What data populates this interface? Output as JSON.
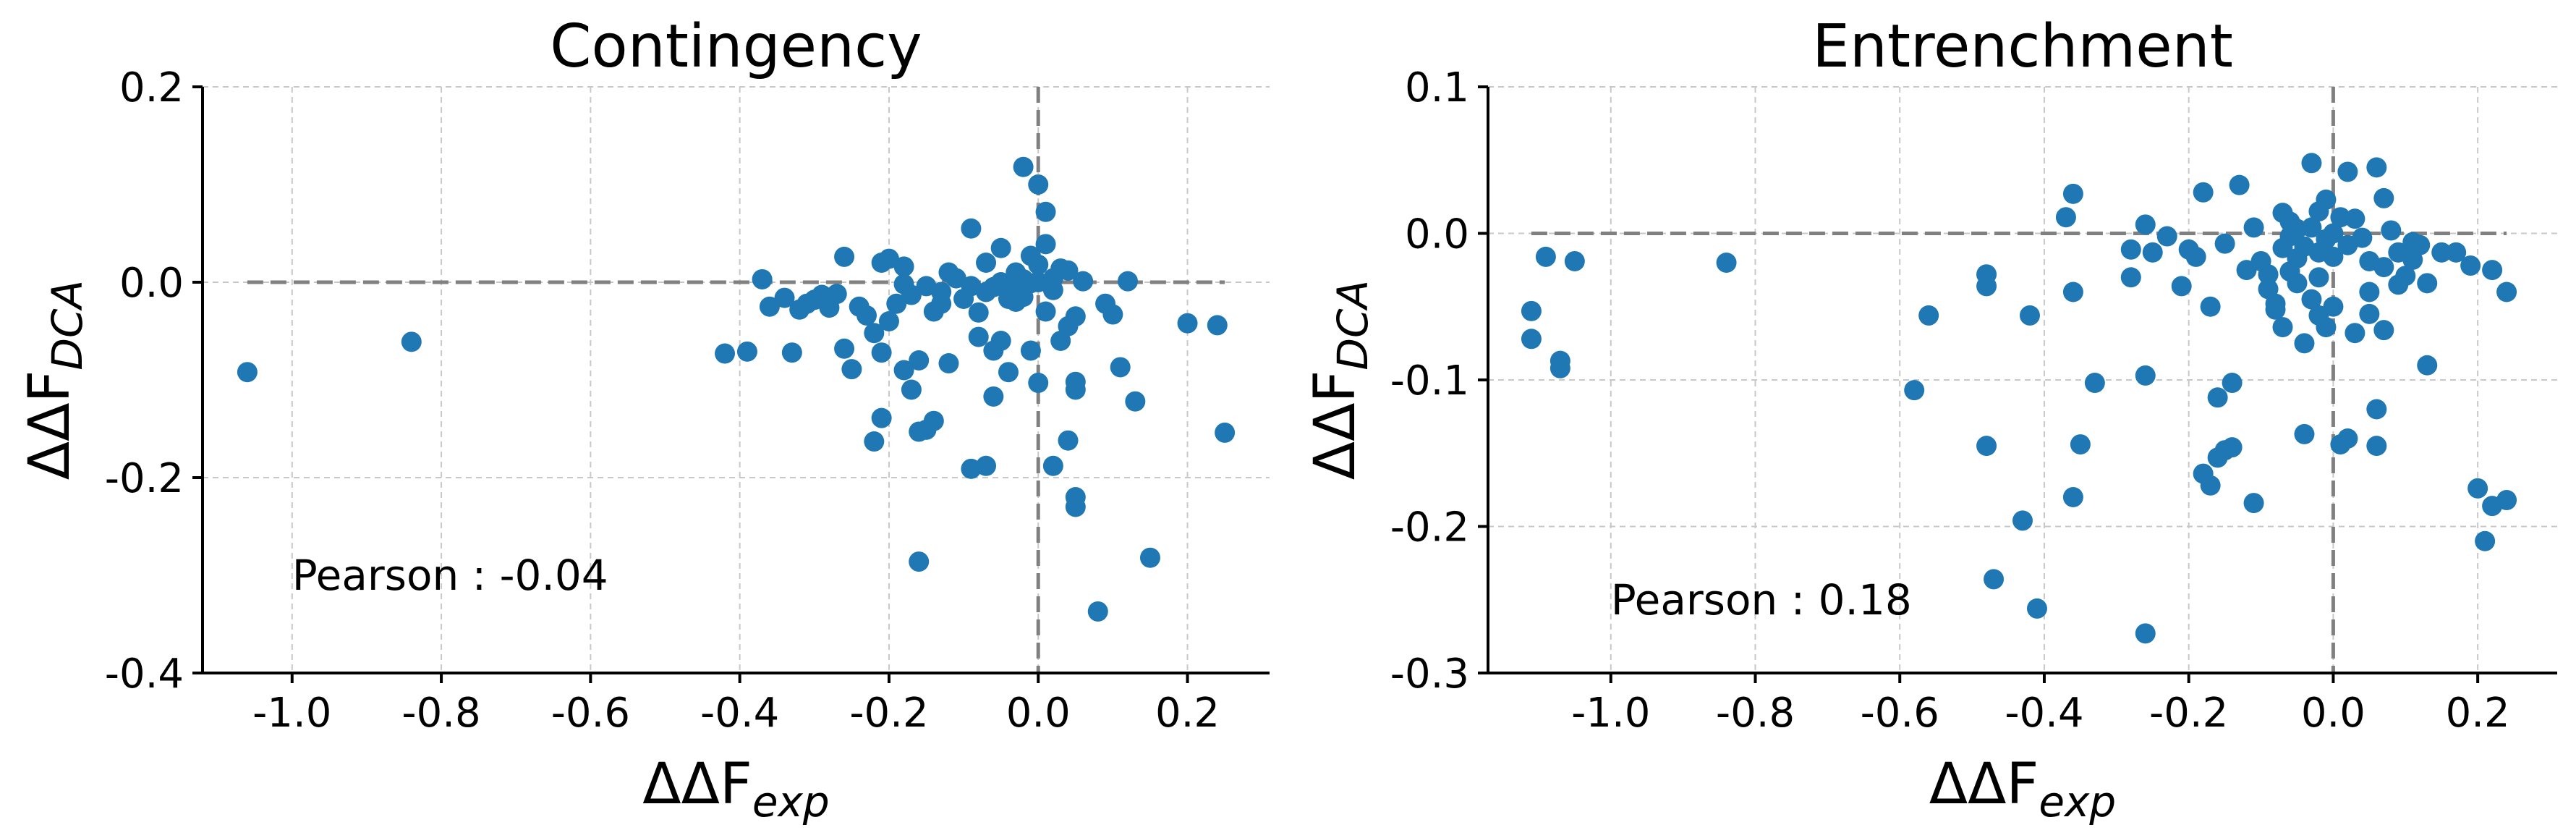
{
  "chart_data": [
    {
      "type": "scatter",
      "title": "Contingency",
      "xlabel": "ΔΔF_exp",
      "ylabel": "ΔΔF_DCA",
      "xlim": [
        -1.12,
        0.31
      ],
      "ylim": [
        -0.4,
        0.2
      ],
      "xticks": [
        -1.0,
        -0.8,
        -0.6,
        -0.4,
        -0.2,
        0.0,
        0.2
      ],
      "xtick_labels": [
        "-1.0",
        "-0.8",
        "-0.6",
        "-0.4",
        "-0.2",
        "0.0",
        "0.2"
      ],
      "yticks": [
        -0.4,
        -0.2,
        0.0,
        0.2
      ],
      "ytick_labels": [
        "-0.4",
        "-0.2",
        "0.0",
        "0.2"
      ],
      "grid": true,
      "reference_lines": {
        "horizontal_y": 0.0,
        "vertical_x": 0.0
      },
      "annotation": "Pearson : -0.04",
      "marker_color": "#1f77b4",
      "points": [
        [
          -1.06,
          -0.092
        ],
        [
          -0.84,
          -0.061
        ],
        [
          -0.42,
          -0.073
        ],
        [
          -0.39,
          -0.071
        ],
        [
          -0.37,
          0.003
        ],
        [
          -0.36,
          -0.025
        ],
        [
          -0.34,
          -0.016
        ],
        [
          -0.33,
          -0.072
        ],
        [
          -0.32,
          -0.028
        ],
        [
          -0.31,
          -0.022
        ],
        [
          -0.3,
          -0.018
        ],
        [
          -0.29,
          -0.013
        ],
        [
          -0.28,
          -0.026
        ],
        [
          -0.27,
          -0.012
        ],
        [
          -0.26,
          0.026
        ],
        [
          -0.26,
          -0.068
        ],
        [
          -0.25,
          -0.089
        ],
        [
          -0.24,
          -0.025
        ],
        [
          -0.23,
          -0.034
        ],
        [
          -0.22,
          -0.052
        ],
        [
          -0.22,
          -0.163
        ],
        [
          -0.21,
          -0.139
        ],
        [
          -0.21,
          -0.072
        ],
        [
          -0.21,
          0.02
        ],
        [
          -0.2,
          0.024
        ],
        [
          -0.2,
          -0.04
        ],
        [
          -0.19,
          -0.022
        ],
        [
          -0.18,
          0.016
        ],
        [
          -0.18,
          -0.09
        ],
        [
          -0.18,
          -0.002
        ],
        [
          -0.17,
          -0.11
        ],
        [
          -0.17,
          -0.013
        ],
        [
          -0.16,
          -0.153
        ],
        [
          -0.16,
          -0.286
        ],
        [
          -0.16,
          -0.08
        ],
        [
          -0.15,
          -0.151
        ],
        [
          -0.15,
          -0.004
        ],
        [
          -0.14,
          -0.142
        ],
        [
          -0.14,
          -0.03
        ],
        [
          -0.13,
          -0.022
        ],
        [
          -0.13,
          -0.01
        ],
        [
          -0.12,
          0.01
        ],
        [
          -0.12,
          -0.083
        ],
        [
          -0.11,
          0.004
        ],
        [
          -0.1,
          -0.017
        ],
        [
          -0.09,
          0.055
        ],
        [
          -0.09,
          -0.191
        ],
        [
          -0.09,
          -0.004
        ],
        [
          -0.08,
          -0.031
        ],
        [
          -0.08,
          -0.056
        ],
        [
          -0.07,
          -0.188
        ],
        [
          -0.07,
          -0.01
        ],
        [
          -0.07,
          0.02
        ],
        [
          -0.06,
          -0.07
        ],
        [
          -0.06,
          -0.117
        ],
        [
          -0.06,
          -0.005
        ],
        [
          -0.05,
          -0.06
        ],
        [
          -0.05,
          0.035
        ],
        [
          -0.05,
          0.0
        ],
        [
          -0.04,
          -0.092
        ],
        [
          -0.04,
          -0.017
        ],
        [
          -0.03,
          -0.006
        ],
        [
          -0.03,
          0.01
        ],
        [
          -0.03,
          -0.02
        ],
        [
          -0.02,
          0.118
        ],
        [
          -0.02,
          0.003
        ],
        [
          -0.02,
          -0.015
        ],
        [
          -0.01,
          0.027
        ],
        [
          -0.01,
          -0.07
        ],
        [
          -0.01,
          -0.001
        ],
        [
          0.0,
          0.1
        ],
        [
          0.0,
          -0.103
        ],
        [
          0.0,
          0.0
        ],
        [
          0.0,
          0.018
        ],
        [
          0.01,
          0.072
        ],
        [
          0.01,
          0.039
        ],
        [
          0.01,
          -0.03
        ],
        [
          0.02,
          -0.188
        ],
        [
          0.02,
          -0.008
        ],
        [
          0.02,
          0.004
        ],
        [
          0.03,
          -0.06
        ],
        [
          0.03,
          0.014
        ],
        [
          0.04,
          -0.162
        ],
        [
          0.04,
          -0.045
        ],
        [
          0.04,
          0.012
        ],
        [
          0.05,
          -0.102
        ],
        [
          0.05,
          -0.23
        ],
        [
          0.05,
          -0.22
        ],
        [
          0.05,
          -0.11
        ],
        [
          0.05,
          -0.035
        ],
        [
          0.06,
          0.001
        ],
        [
          0.08,
          -0.337
        ],
        [
          0.09,
          -0.022
        ],
        [
          0.1,
          -0.033
        ],
        [
          0.11,
          -0.087
        ],
        [
          0.12,
          0.001
        ],
        [
          0.13,
          -0.122
        ],
        [
          0.15,
          -0.282
        ],
        [
          0.2,
          -0.042
        ],
        [
          0.24,
          -0.044
        ],
        [
          0.25,
          -0.154
        ]
      ]
    },
    {
      "type": "scatter",
      "title": "Entrenchment",
      "xlabel": "ΔΔF_exp",
      "ylabel": "ΔΔF_DCA",
      "xlim": [
        -1.17,
        0.31
      ],
      "ylim": [
        -0.3,
        0.1
      ],
      "xticks": [
        -1.0,
        -0.8,
        -0.6,
        -0.4,
        -0.2,
        0.0,
        0.2
      ],
      "xtick_labels": [
        "-1.0",
        "-0.8",
        "-0.6",
        "-0.4",
        "-0.2",
        "0.0",
        "0.2"
      ],
      "yticks": [
        -0.3,
        -0.2,
        -0.1,
        0.0,
        0.1
      ],
      "ytick_labels": [
        "-0.3",
        "-0.2",
        "-0.1",
        "0.0",
        "0.1"
      ],
      "grid": true,
      "reference_lines": {
        "horizontal_y": 0.0,
        "vertical_x": 0.0
      },
      "annotation": "Pearson : 0.18",
      "marker_color": "#1f77b4",
      "points": [
        [
          -1.11,
          -0.053
        ],
        [
          -1.11,
          -0.072
        ],
        [
          -1.09,
          -0.016
        ],
        [
          -1.07,
          -0.092
        ],
        [
          -1.07,
          -0.087
        ],
        [
          -1.05,
          -0.019
        ],
        [
          -0.84,
          -0.02
        ],
        [
          -0.58,
          -0.107
        ],
        [
          -0.56,
          -0.056
        ],
        [
          -0.48,
          -0.028
        ],
        [
          -0.48,
          -0.036
        ],
        [
          -0.48,
          -0.145
        ],
        [
          -0.47,
          -0.236
        ],
        [
          -0.43,
          -0.196
        ],
        [
          -0.42,
          -0.056
        ],
        [
          -0.41,
          -0.256
        ],
        [
          -0.37,
          0.011
        ],
        [
          -0.36,
          0.027
        ],
        [
          -0.36,
          -0.04
        ],
        [
          -0.36,
          -0.18
        ],
        [
          -0.35,
          -0.144
        ],
        [
          -0.33,
          -0.102
        ],
        [
          -0.28,
          -0.03
        ],
        [
          -0.28,
          -0.011
        ],
        [
          -0.26,
          0.006
        ],
        [
          -0.26,
          -0.097
        ],
        [
          -0.26,
          -0.273
        ],
        [
          -0.25,
          -0.013
        ],
        [
          -0.23,
          -0.002
        ],
        [
          -0.21,
          -0.036
        ],
        [
          -0.2,
          -0.011
        ],
        [
          -0.19,
          -0.016
        ],
        [
          -0.18,
          -0.164
        ],
        [
          -0.18,
          0.028
        ],
        [
          -0.17,
          -0.05
        ],
        [
          -0.17,
          -0.172
        ],
        [
          -0.16,
          -0.153
        ],
        [
          -0.16,
          -0.112
        ],
        [
          -0.15,
          -0.148
        ],
        [
          -0.15,
          -0.007
        ],
        [
          -0.14,
          -0.146
        ],
        [
          -0.14,
          -0.102
        ],
        [
          -0.13,
          0.033
        ],
        [
          -0.12,
          -0.025
        ],
        [
          -0.11,
          -0.184
        ],
        [
          -0.11,
          0.004
        ],
        [
          -0.1,
          -0.019
        ],
        [
          -0.09,
          -0.028
        ],
        [
          -0.09,
          -0.038
        ],
        [
          -0.08,
          -0.048
        ],
        [
          -0.08,
          -0.052
        ],
        [
          -0.07,
          -0.064
        ],
        [
          -0.07,
          -0.01
        ],
        [
          -0.07,
          0.014
        ],
        [
          -0.06,
          -0.002
        ],
        [
          -0.06,
          -0.026
        ],
        [
          -0.06,
          0.008
        ],
        [
          -0.05,
          -0.034
        ],
        [
          -0.05,
          -0.017
        ],
        [
          -0.05,
          0.003
        ],
        [
          -0.04,
          -0.009
        ],
        [
          -0.04,
          -0.075
        ],
        [
          -0.04,
          -0.137
        ],
        [
          -0.03,
          -0.045
        ],
        [
          -0.03,
          0.048
        ],
        [
          -0.03,
          0.004
        ],
        [
          -0.02,
          -0.03
        ],
        [
          -0.02,
          -0.013
        ],
        [
          -0.02,
          0.015
        ],
        [
          -0.02,
          -0.056
        ],
        [
          -0.01,
          -0.064
        ],
        [
          -0.01,
          0.023
        ],
        [
          -0.01,
          -0.004
        ],
        [
          0.0,
          -0.016
        ],
        [
          0.0,
          -0.05
        ],
        [
          0.0,
          0.0
        ],
        [
          0.01,
          -0.144
        ],
        [
          0.01,
          0.011
        ],
        [
          0.02,
          -0.14
        ],
        [
          0.02,
          0.042
        ],
        [
          0.02,
          -0.008
        ],
        [
          0.03,
          -0.068
        ],
        [
          0.03,
          0.01
        ],
        [
          0.04,
          -0.003
        ],
        [
          0.05,
          -0.04
        ],
        [
          0.05,
          -0.055
        ],
        [
          0.05,
          -0.019
        ],
        [
          0.06,
          0.045
        ],
        [
          0.06,
          -0.12
        ],
        [
          0.06,
          -0.145
        ],
        [
          0.07,
          0.024
        ],
        [
          0.07,
          -0.066
        ],
        [
          0.07,
          -0.023
        ],
        [
          0.08,
          0.002
        ],
        [
          0.09,
          -0.013
        ],
        [
          0.09,
          -0.035
        ],
        [
          0.1,
          -0.029
        ],
        [
          0.11,
          -0.018
        ],
        [
          0.11,
          -0.006
        ],
        [
          0.12,
          -0.008
        ],
        [
          0.13,
          -0.034
        ],
        [
          0.13,
          -0.09
        ],
        [
          0.15,
          -0.013
        ],
        [
          0.17,
          -0.013
        ],
        [
          0.19,
          -0.022
        ],
        [
          0.2,
          -0.174
        ],
        [
          0.21,
          -0.21
        ],
        [
          0.22,
          -0.186
        ],
        [
          0.22,
          -0.025
        ],
        [
          0.24,
          -0.182
        ],
        [
          0.24,
          -0.04
        ]
      ]
    }
  ]
}
